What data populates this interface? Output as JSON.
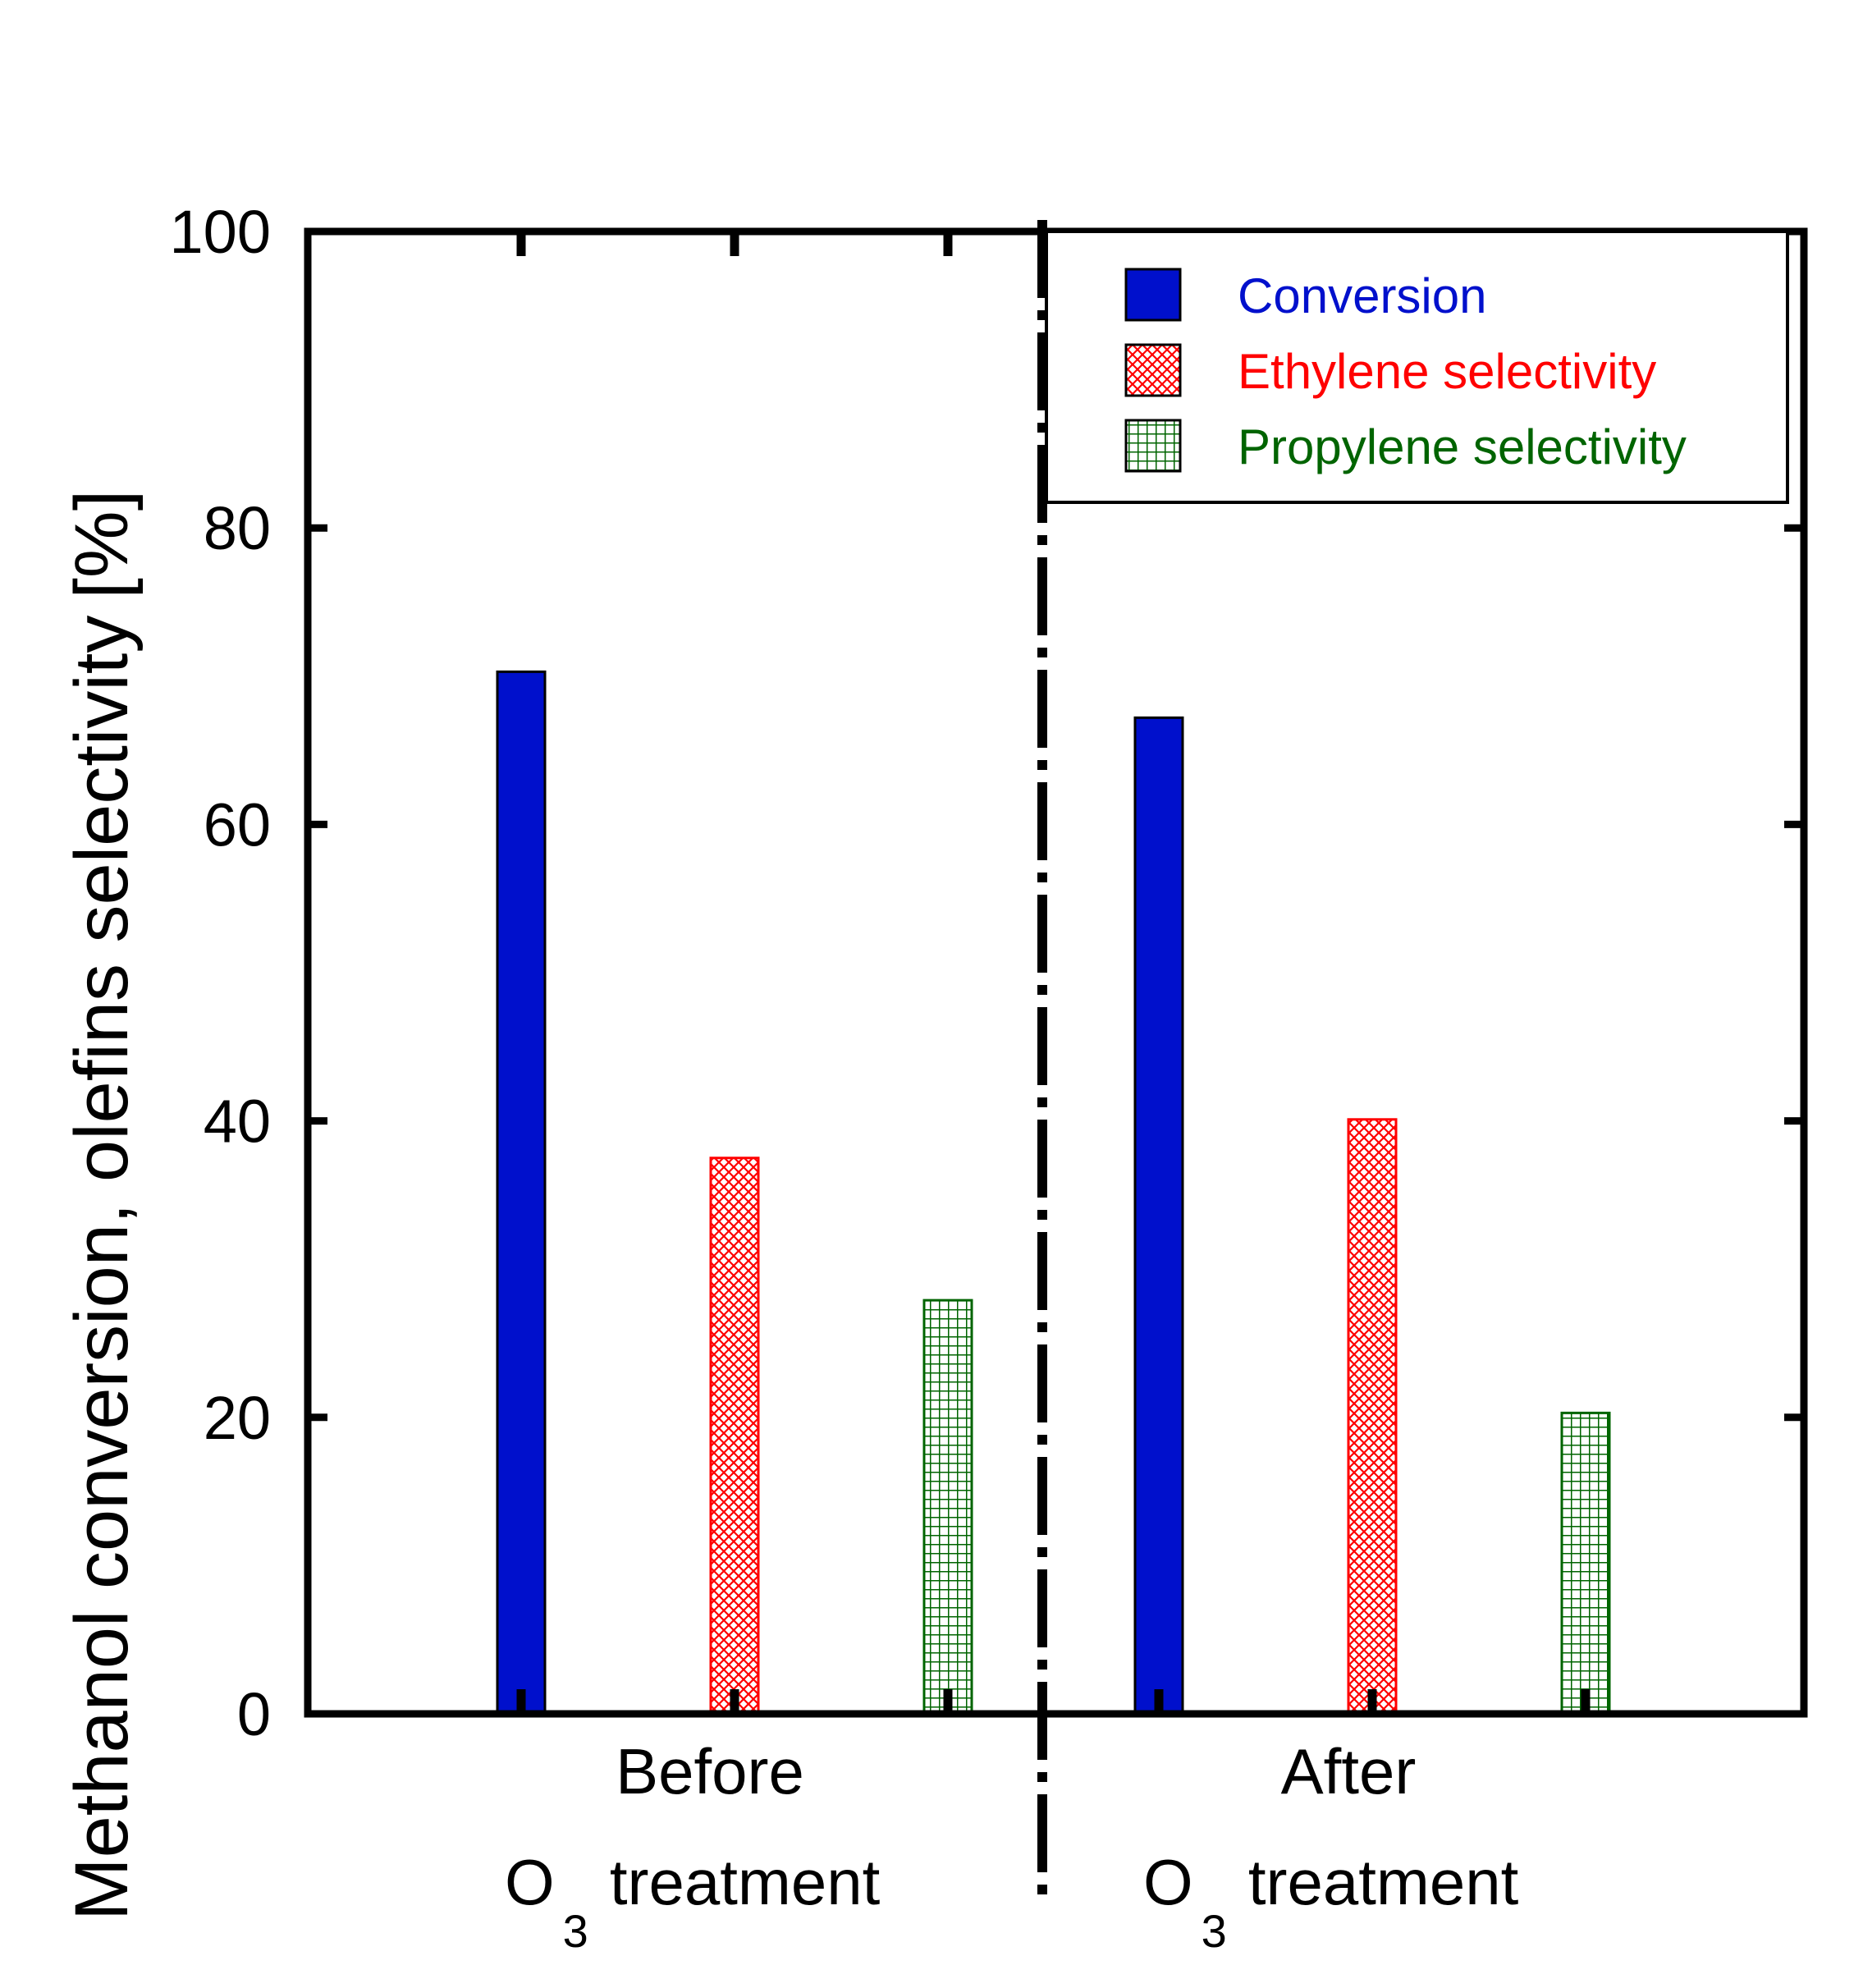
{
  "chart_data": {
    "type": "bar",
    "title": "",
    "ylabel_main": "Methanol conversion, olefins selectivity",
    "ylabel_unit": "[%]",
    "ylim": [
      0,
      100
    ],
    "yticks": [
      "0",
      "20",
      "40",
      "60",
      "80",
      "100"
    ],
    "groups": [
      {
        "line1": "Before",
        "line2_main": "O",
        "line2_sub": "3",
        "line2_rest": "treatment"
      },
      {
        "line1": "After",
        "line2_main": "O",
        "line2_sub": "3",
        "line2_rest": "treatment"
      }
    ],
    "series": [
      {
        "name": "Conversion",
        "values": [
          70.3,
          67.2
        ],
        "color": "#0010cc",
        "pattern": "solid",
        "text_color": "#0010cc"
      },
      {
        "name": "Ethylene selectivity",
        "values": [
          37.5,
          40.1
        ],
        "color": "#ff0000",
        "pattern": "crosshatch",
        "text_color": "#ff0000"
      },
      {
        "name": "Propylene selectivity",
        "values": [
          27.9,
          20.3
        ],
        "color": "#006400",
        "pattern": "grid",
        "text_color": "#006400"
      }
    ],
    "legend_position": "top-right",
    "divider": "dash-dot vertical line between groups"
  }
}
